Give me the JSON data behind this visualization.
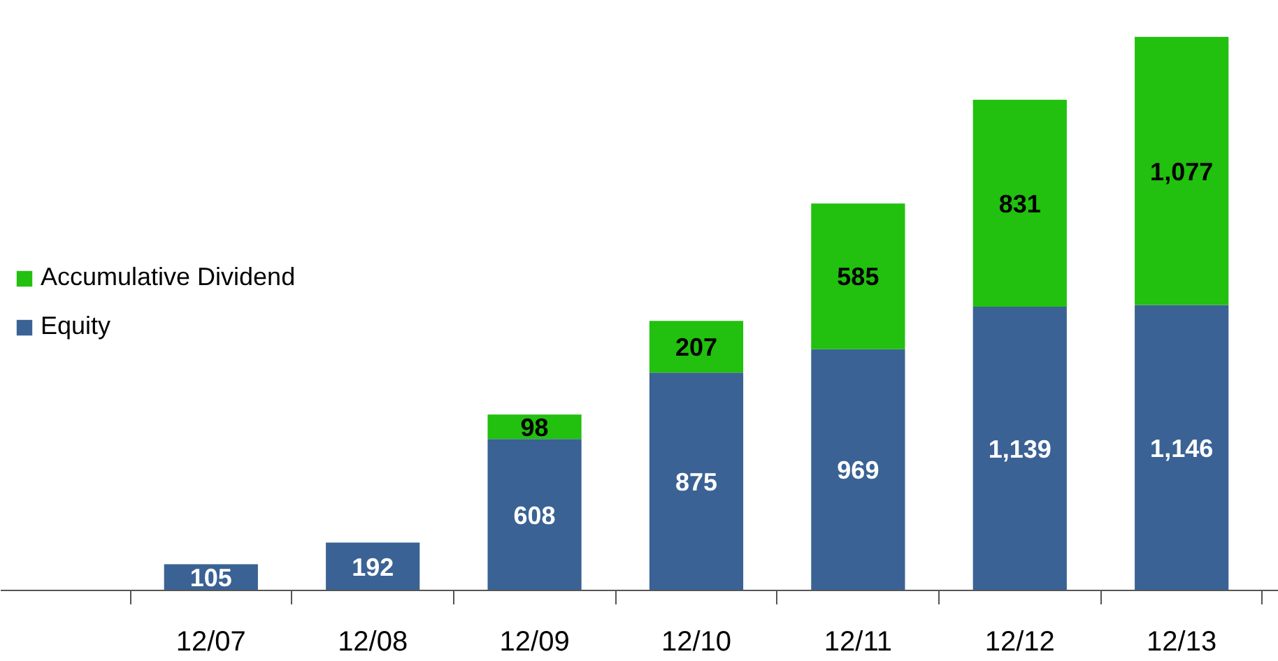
{
  "chart_data": {
    "type": "bar",
    "stacked": true,
    "categories": [
      "12/07",
      "12/08",
      "12/09",
      "12/10",
      "12/11",
      "12/12",
      "12/13"
    ],
    "series": [
      {
        "name": "Equity",
        "color": "#3a6294",
        "values": [
          105,
          192,
          608,
          875,
          969,
          1139,
          1146
        ],
        "value_labels": [
          "105",
          "192",
          "608",
          "875",
          "969",
          "1,139",
          "1,146"
        ]
      },
      {
        "name": "Accumulative Dividend",
        "color": "#22c00f",
        "values": [
          null,
          null,
          98,
          207,
          585,
          831,
          1077
        ],
        "value_labels": [
          null,
          null,
          "98",
          "207",
          "585",
          "831",
          "1,077"
        ]
      }
    ],
    "legend": "left",
    "grid": false
  }
}
